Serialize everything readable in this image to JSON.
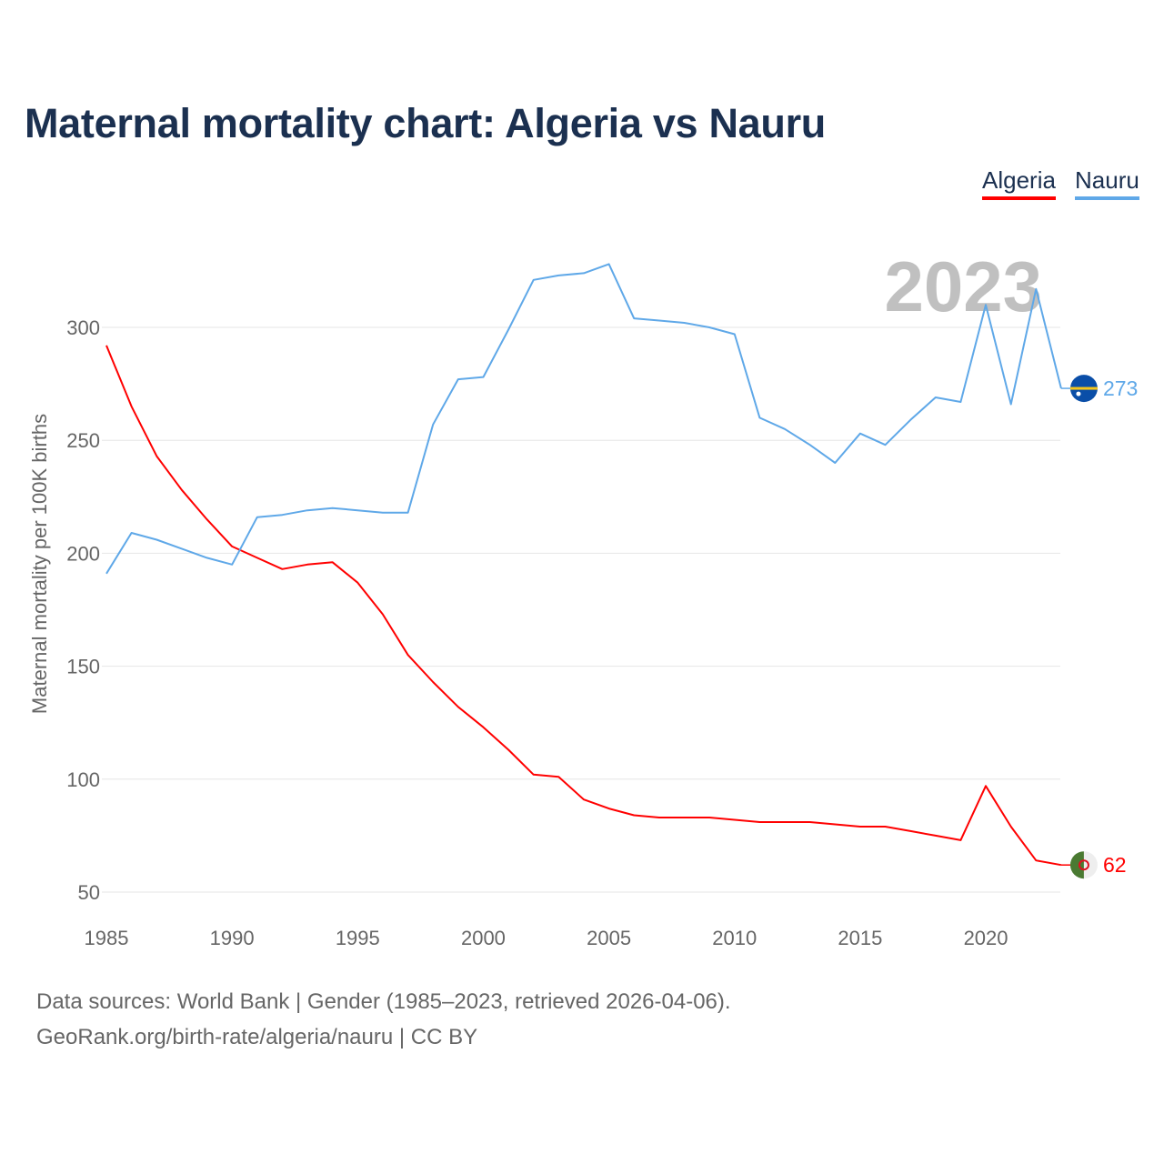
{
  "title": "Maternal mortality chart: Algeria vs Nauru",
  "legend": {
    "algeria": "Algeria",
    "nauru": "Nauru"
  },
  "footer": {
    "line1": "Data sources: World Bank | Gender (1985–2023, retrieved 2026-04-06).",
    "line2": "GeoRank.org/birth-rate/algeria/nauru | CC BY"
  },
  "chart_data": {
    "type": "line",
    "title": "Maternal mortality chart: Algeria vs Nauru",
    "ylabel": "Maternal mortality per 100K births",
    "xlabel": "",
    "year_watermark": "2023",
    "xlim": [
      1985,
      2023
    ],
    "ylim": [
      40,
      335
    ],
    "xticks": [
      1985,
      1990,
      1995,
      2000,
      2005,
      2010,
      2015,
      2020
    ],
    "yticks": [
      50,
      100,
      150,
      200,
      250,
      300
    ],
    "grid": true,
    "legend_position": "top-right",
    "x": [
      1985,
      1986,
      1987,
      1988,
      1989,
      1990,
      1991,
      1992,
      1993,
      1994,
      1995,
      1996,
      1997,
      1998,
      1999,
      2000,
      2001,
      2002,
      2003,
      2004,
      2005,
      2006,
      2007,
      2008,
      2009,
      2010,
      2011,
      2012,
      2013,
      2014,
      2015,
      2016,
      2017,
      2018,
      2019,
      2020,
      2021,
      2022,
      2023
    ],
    "series": [
      {
        "name": "Algeria",
        "color": "#ff0000",
        "end_label": "62",
        "values": [
          292,
          265,
          243,
          228,
          215,
          203,
          198,
          193,
          195,
          196,
          187,
          173,
          155,
          143,
          132,
          123,
          113,
          102,
          101,
          91,
          87,
          84,
          83,
          83,
          83,
          82,
          81,
          81,
          81,
          80,
          79,
          79,
          77,
          75,
          73,
          97,
          79,
          64,
          62
        ]
      },
      {
        "name": "Nauru",
        "color": "#5fa8e8",
        "end_label": "273",
        "values": [
          191,
          209,
          206,
          202,
          198,
          195,
          216,
          217,
          219,
          220,
          219,
          218,
          218,
          257,
          277,
          278,
          299,
          321,
          323,
          324,
          328,
          304,
          303,
          302,
          300,
          297,
          260,
          255,
          248,
          240,
          253,
          248,
          259,
          269,
          267,
          310,
          266,
          317,
          273
        ]
      }
    ]
  }
}
